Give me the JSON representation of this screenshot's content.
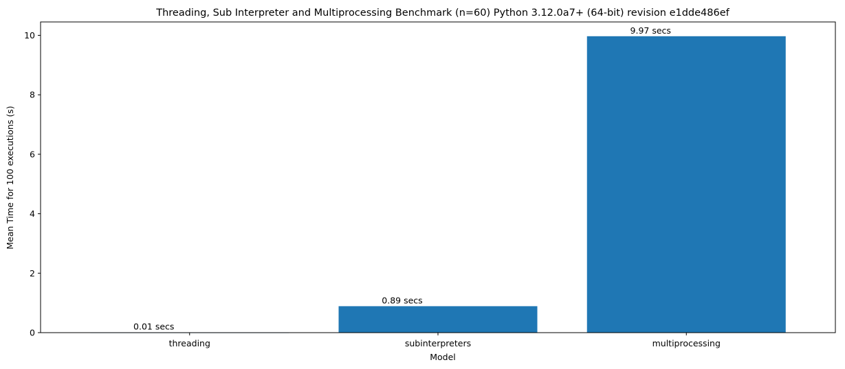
{
  "chart_data": {
    "type": "bar",
    "title": "Threading, Sub Interpreter and Multiprocessing Benchmark (n=60) Python 3.12.0a7+ (64-bit) revision e1dde486ef",
    "xlabel": "Model",
    "ylabel": "Mean Time for 100 executions (s)",
    "categories": [
      "threading",
      "subinterpreters",
      "multiprocessing"
    ],
    "values": [
      0.01,
      0.89,
      9.97
    ],
    "data_labels": [
      "0.01 secs",
      "0.89 secs",
      "9.97 secs"
    ],
    "ylim": [
      0,
      10.45
    ],
    "yticks": [
      0,
      2,
      4,
      6,
      8,
      10
    ],
    "ytick_labels": [
      "0",
      "2",
      "4",
      "6",
      "8",
      "10"
    ],
    "bar_color": "#1f77b4",
    "grid": false,
    "legend": "none"
  }
}
